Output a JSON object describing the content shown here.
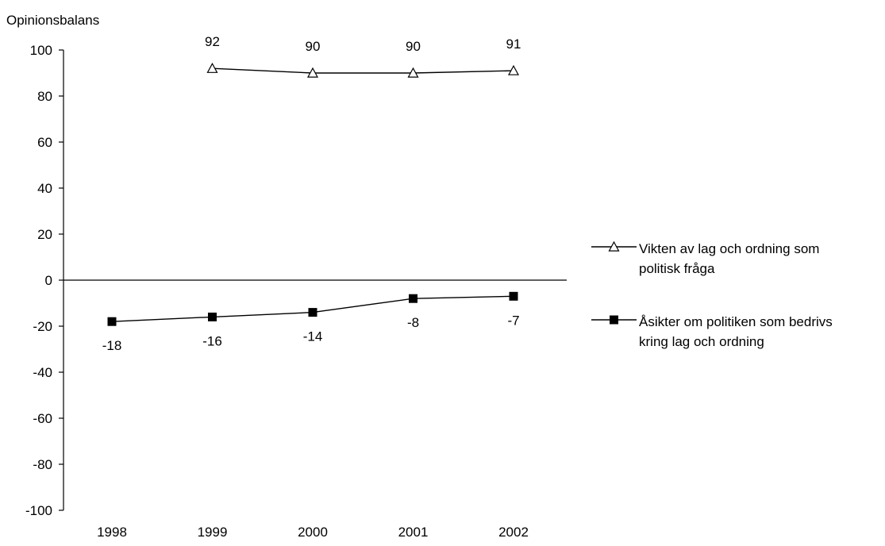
{
  "chart_data": {
    "type": "line",
    "title": "",
    "ylabel": "Opinionsbalans",
    "xlabel": "",
    "ylim": [
      -100,
      100
    ],
    "ytick_step": 20,
    "yticks": [
      "100",
      "80",
      "60",
      "40",
      "20",
      "0",
      "-20",
      "-40",
      "-60",
      "-80",
      "-100"
    ],
    "categories": [
      "1998",
      "1999",
      "2000",
      "2001",
      "2002"
    ],
    "grid": false,
    "legend_position": "right",
    "series": [
      {
        "name": "Vikten av lag och ordning som politisk fråga",
        "name_lines": [
          "Vikten av lag och ordning som",
          "politisk fråga"
        ],
        "marker": "triangle-open",
        "color": "#000000",
        "values": [
          null,
          92,
          90,
          90,
          91
        ],
        "labels": [
          "",
          "92",
          "90",
          "90",
          "91"
        ]
      },
      {
        "name": "Åsikter om politiken som bedrivs kring lag och ordning",
        "name_lines": [
          "Åsikter om politiken som bedrivs",
          "kring lag och ordning"
        ],
        "marker": "square-filled",
        "color": "#000000",
        "values": [
          -18,
          -16,
          -14,
          -8,
          -7
        ],
        "labels": [
          "-18",
          "-16",
          "-14",
          "-8",
          "-7"
        ]
      }
    ]
  }
}
